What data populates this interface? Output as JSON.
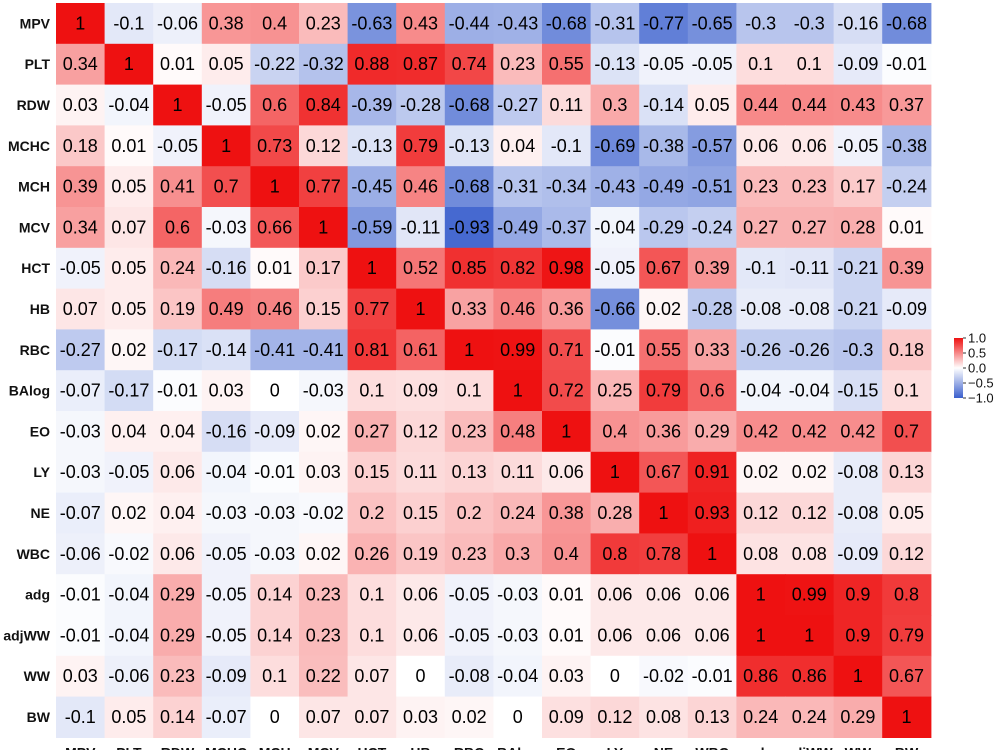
{
  "chart_data": {
    "type": "heatmap",
    "title": "",
    "xlabel": "",
    "ylabel": "",
    "variables": [
      "MPV",
      "PLT",
      "RDW",
      "MCHC",
      "MCH",
      "MCV",
      "HCT",
      "HB",
      "RBC",
      "BAlog",
      "EO",
      "LY",
      "NE",
      "WBC",
      "adg",
      "adjWW",
      "WW",
      "BW"
    ],
    "values": [
      [
        1,
        -0.1,
        -0.06,
        0.38,
        0.4,
        0.23,
        -0.63,
        0.43,
        -0.44,
        -0.43,
        -0.68,
        -0.31,
        -0.77,
        -0.65,
        -0.3,
        -0.3,
        -0.16,
        -0.68
      ],
      [
        0.34,
        1,
        0.01,
        0.05,
        -0.22,
        -0.32,
        0.88,
        0.87,
        0.74,
        0.23,
        0.55,
        -0.13,
        -0.05,
        -0.05,
        0.1,
        0.1,
        -0.09,
        -0.01
      ],
      [
        0.03,
        -0.04,
        1,
        -0.05,
        0.6,
        0.84,
        -0.39,
        -0.28,
        -0.68,
        -0.27,
        0.11,
        0.3,
        -0.14,
        0.05,
        0.44,
        0.44,
        0.43,
        0.37
      ],
      [
        0.18,
        0.01,
        -0.05,
        1,
        0.73,
        0.12,
        -0.13,
        0.79,
        -0.13,
        0.04,
        -0.1,
        -0.69,
        -0.38,
        -0.57,
        0.06,
        0.06,
        -0.05,
        -0.38
      ],
      [
        0.39,
        0.05,
        0.41,
        0.7,
        1,
        0.77,
        -0.45,
        0.46,
        -0.68,
        -0.31,
        -0.34,
        -0.43,
        -0.49,
        -0.51,
        0.23,
        0.23,
        0.17,
        -0.24
      ],
      [
        0.34,
        0.07,
        0.6,
        -0.03,
        0.66,
        1,
        -0.59,
        -0.11,
        -0.93,
        -0.49,
        -0.37,
        -0.04,
        -0.29,
        -0.24,
        0.27,
        0.27,
        0.28,
        0.01
      ],
      [
        -0.05,
        0.05,
        0.24,
        -0.16,
        0.01,
        0.17,
        1,
        0.52,
        0.85,
        0.82,
        0.98,
        -0.05,
        0.67,
        0.39,
        -0.1,
        -0.11,
        -0.21,
        0.39
      ],
      [
        0.07,
        0.05,
        0.19,
        0.49,
        0.46,
        0.15,
        0.77,
        1,
        0.33,
        0.46,
        0.36,
        -0.66,
        0.02,
        -0.28,
        -0.08,
        -0.08,
        -0.21,
        -0.09
      ],
      [
        -0.27,
        0.02,
        -0.17,
        -0.14,
        -0.41,
        -0.41,
        0.81,
        0.61,
        1,
        0.99,
        0.71,
        -0.01,
        0.55,
        0.33,
        -0.26,
        -0.26,
        -0.3,
        0.18
      ],
      [
        -0.07,
        -0.17,
        -0.01,
        0.03,
        0,
        -0.03,
        0.1,
        0.09,
        0.1,
        1,
        0.72,
        0.25,
        0.79,
        0.6,
        -0.04,
        -0.04,
        -0.15,
        0.1
      ],
      [
        -0.03,
        0.04,
        0.04,
        -0.16,
        -0.09,
        0.02,
        0.27,
        0.12,
        0.23,
        0.48,
        1,
        0.4,
        0.36,
        0.29,
        0.42,
        0.42,
        0.42,
        0.7
      ],
      [
        -0.03,
        -0.05,
        0.06,
        -0.04,
        -0.01,
        0.03,
        0.15,
        0.11,
        0.13,
        0.11,
        0.06,
        1,
        0.67,
        0.91,
        0.02,
        0.02,
        -0.08,
        0.13
      ],
      [
        -0.07,
        0.02,
        0.04,
        -0.03,
        -0.03,
        -0.02,
        0.2,
        0.15,
        0.2,
        0.24,
        0.38,
        0.28,
        1,
        0.93,
        0.12,
        0.12,
        -0.08,
        0.05
      ],
      [
        -0.06,
        -0.02,
        0.06,
        -0.05,
        -0.03,
        0.02,
        0.26,
        0.19,
        0.23,
        0.3,
        0.4,
        0.8,
        0.78,
        1,
        0.08,
        0.08,
        -0.09,
        0.12
      ],
      [
        -0.01,
        -0.04,
        0.29,
        -0.05,
        0.14,
        0.23,
        0.1,
        0.06,
        -0.05,
        -0.03,
        0.01,
        0.06,
        0.06,
        0.06,
        1,
        0.99,
        0.9,
        0.8
      ],
      [
        -0.01,
        -0.04,
        0.29,
        -0.05,
        0.14,
        0.23,
        0.1,
        0.06,
        -0.05,
        -0.03,
        0.01,
        0.06,
        0.06,
        0.06,
        1,
        1,
        0.9,
        0.79
      ],
      [
        0.03,
        -0.06,
        0.23,
        -0.09,
        0.1,
        0.22,
        0.07,
        0,
        -0.08,
        -0.04,
        0.03,
        0,
        -0.02,
        -0.01,
        0.86,
        0.86,
        1,
        0.67
      ],
      [
        -0.1,
        0.05,
        0.14,
        -0.07,
        0,
        0.07,
        0.07,
        0.03,
        0.02,
        0,
        0.09,
        0.12,
        0.08,
        0.13,
        0.24,
        0.24,
        0.29,
        1
      ]
    ],
    "value_range": [
      -1,
      1
    ],
    "colormap": {
      "negative": "#3a5fcd",
      "zero": "#ffffff",
      "positive": "#ee1111"
    },
    "colorbar": {
      "position": "right",
      "ticks": [
        1.0,
        0.5,
        0.0,
        -0.5,
        -1.0
      ],
      "tick_labels": [
        "1.0",
        "0.5",
        "0.0",
        "−0.5",
        "−1.0"
      ]
    },
    "grid": false
  }
}
